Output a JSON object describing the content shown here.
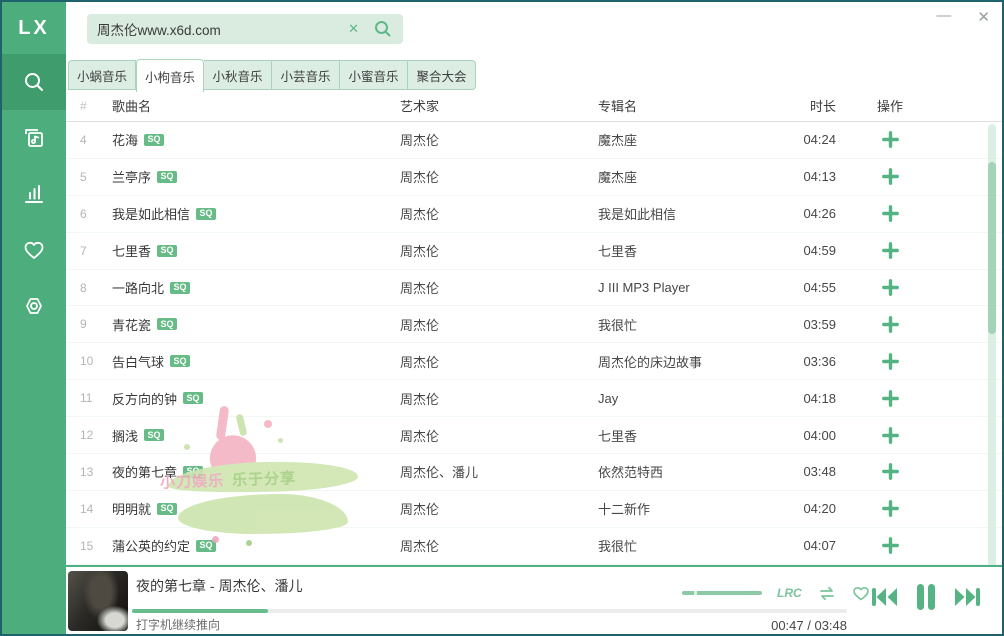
{
  "window": {
    "minimize_glyph": "—",
    "close_glyph": "✕"
  },
  "logo": {
    "text": "LX"
  },
  "search": {
    "value": "周杰伦www.x6d.com",
    "clear_glyph": "✕"
  },
  "sidebar": {
    "items": [
      {
        "id": "search",
        "active": true
      },
      {
        "id": "music-list",
        "active": false
      },
      {
        "id": "leaderboard",
        "active": false
      },
      {
        "id": "favorites",
        "active": false
      },
      {
        "id": "settings",
        "active": false
      }
    ]
  },
  "tabs": [
    {
      "label": "小蜗音乐",
      "active": false
    },
    {
      "label": "小枸音乐",
      "active": true
    },
    {
      "label": "小秋音乐",
      "active": false
    },
    {
      "label": "小芸音乐",
      "active": false
    },
    {
      "label": "小蜜音乐",
      "active": false
    },
    {
      "label": "聚合大会",
      "active": false
    }
  ],
  "table": {
    "headers": {
      "index": "#",
      "name": "歌曲名",
      "artist": "艺术家",
      "album": "专辑名",
      "duration": "时长",
      "action": "操作"
    },
    "rows": [
      {
        "index": "4",
        "name": "花海",
        "quality": "SQ",
        "artist": "周杰伦",
        "album": "魔杰座",
        "duration": "04:24"
      },
      {
        "index": "5",
        "name": "兰亭序",
        "quality": "SQ",
        "artist": "周杰伦",
        "album": "魔杰座",
        "duration": "04:13"
      },
      {
        "index": "6",
        "name": "我是如此相信",
        "quality": "SQ",
        "artist": "周杰伦",
        "album": "我是如此相信",
        "duration": "04:26"
      },
      {
        "index": "7",
        "name": "七里香",
        "quality": "SQ",
        "artist": "周杰伦",
        "album": "七里香",
        "duration": "04:59"
      },
      {
        "index": "8",
        "name": "一路向北",
        "quality": "SQ",
        "artist": "周杰伦",
        "album": "J III MP3 Player",
        "duration": "04:55"
      },
      {
        "index": "9",
        "name": "青花瓷",
        "quality": "SQ",
        "artist": "周杰伦",
        "album": "我很忙",
        "duration": "03:59"
      },
      {
        "index": "10",
        "name": "告白气球",
        "quality": "SQ",
        "artist": "周杰伦",
        "album": "周杰伦的床边故事",
        "duration": "03:36"
      },
      {
        "index": "11",
        "name": "反方向的钟",
        "quality": "SQ",
        "artist": "周杰伦",
        "album": "Jay",
        "duration": "04:18"
      },
      {
        "index": "12",
        "name": "搁浅",
        "quality": "SQ",
        "artist": "周杰伦",
        "album": "七里香",
        "duration": "04:00"
      },
      {
        "index": "13",
        "name": "夜的第七章",
        "quality": "SQ",
        "artist": "周杰伦、潘儿",
        "album": "依然范特西",
        "duration": "03:48"
      },
      {
        "index": "14",
        "name": "明明就",
        "quality": "SQ",
        "artist": "周杰伦",
        "album": "十二新作",
        "duration": "04:20"
      },
      {
        "index": "15",
        "name": "蒲公英的约定",
        "quality": "SQ",
        "artist": "周杰伦",
        "album": "我很忙",
        "duration": "04:07"
      }
    ]
  },
  "watermark": {
    "text_left": "小刀娱乐",
    "text_right": "乐于分享"
  },
  "player": {
    "title": "夜的第七章 - 周杰伦、潘儿",
    "lyric": "打字机继续推向",
    "time": "00:47 / 03:48",
    "progress_percent": 19,
    "lrc_label": "LRC"
  },
  "colors": {
    "accent": "#4ead7c",
    "accent_dark": "#3f9c6d",
    "badge": "#66bb86",
    "window_border": "#20626b",
    "progress_fill": "#68bc8e"
  }
}
